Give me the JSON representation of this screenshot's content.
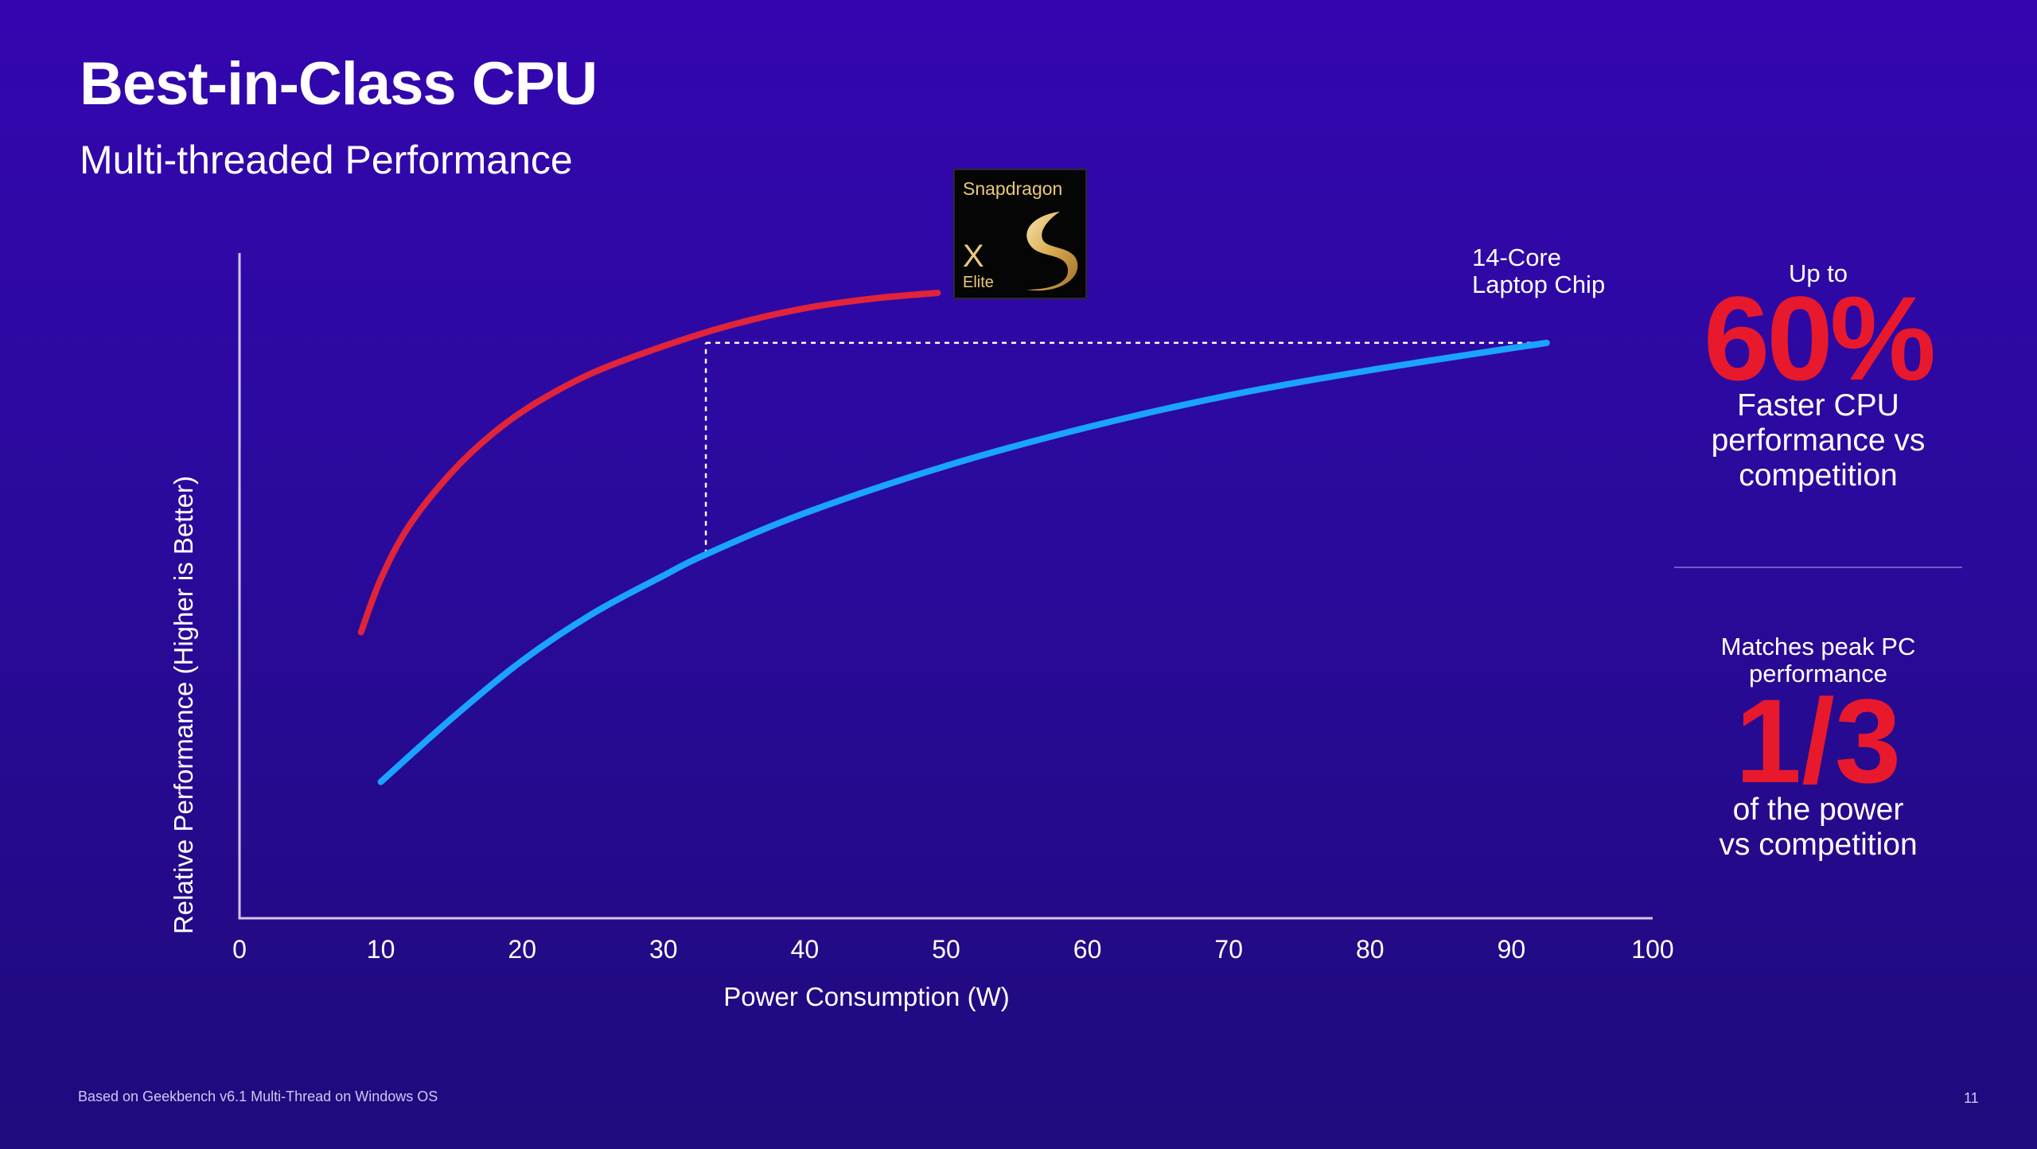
{
  "header": {
    "title": "Best-in-Class CPU",
    "subtitle": "Multi-threaded Performance"
  },
  "badge": {
    "brand": "Snapdragon",
    "model": "X",
    "tier": "Elite",
    "colors": {
      "gold": "#e8c97a",
      "background": "#050505"
    }
  },
  "chart_data": {
    "type": "line",
    "xlabel": "Power Consumption (W)",
    "ylabel": "Relative Performance  (Higher is Better)",
    "xlim": [
      0,
      100
    ],
    "ylim": [
      0,
      100
    ],
    "xticks": [
      "0",
      "10",
      "20",
      "30",
      "40",
      "50",
      "60",
      "70",
      "80",
      "90",
      "100"
    ],
    "grid": false,
    "series": [
      {
        "name": "",
        "color": "#e0243a",
        "points": [
          [
            8.6,
            43
          ],
          [
            10,
            51
          ],
          [
            12,
            59
          ],
          [
            15,
            67
          ],
          [
            18,
            73
          ],
          [
            21,
            77.5
          ],
          [
            25,
            82
          ],
          [
            30,
            86
          ],
          [
            35,
            89.3
          ],
          [
            40,
            91.7
          ],
          [
            45,
            93.2
          ],
          [
            49.4,
            94
          ]
        ]
      },
      {
        "name": "14-Core Laptop Chip",
        "color": "#1aa3ff",
        "points": [
          [
            10,
            20.5
          ],
          [
            15,
            30
          ],
          [
            20,
            38.7
          ],
          [
            25,
            45.8
          ],
          [
            30,
            51.5
          ],
          [
            33,
            54.7
          ],
          [
            40,
            60.9
          ],
          [
            50,
            68
          ],
          [
            60,
            73.8
          ],
          [
            70,
            78.6
          ],
          [
            80,
            82.4
          ],
          [
            92.5,
            86.5
          ]
        ]
      }
    ],
    "annotations": [
      {
        "type": "dashed-horizontal",
        "y": 86.5,
        "x_from": 33,
        "x_to": 92.5
      },
      {
        "type": "dashed-vertical",
        "x": 33,
        "y_from": 54.7,
        "y_to": 86.5
      }
    ],
    "series_label_lines": [
      "14-Core",
      "Laptop Chip"
    ]
  },
  "panel": {
    "stat1_prefix": "Up to",
    "stat1_value": "60%",
    "stat1_desc_lines": [
      "Faster CPU",
      "performance vs",
      "competition"
    ],
    "stat2_prefix_lines": [
      "Matches peak PC",
      "performance"
    ],
    "stat2_value": "1/3",
    "stat2_desc_lines": [
      "of the power",
      "vs competition"
    ],
    "accent_color": "#e8192c"
  },
  "footer": {
    "footnote": "Based on Geekbench v6.1 Multi-Thread on Windows OS",
    "page": "11"
  }
}
